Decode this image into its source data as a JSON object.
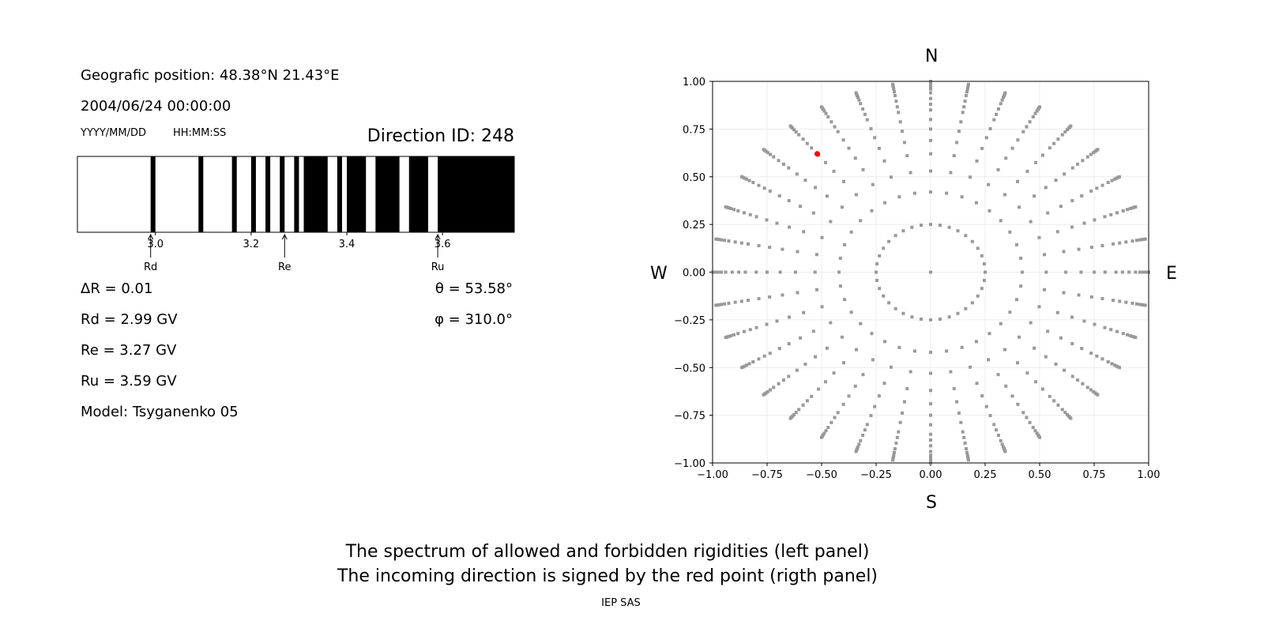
{
  "left_panel": {
    "position": "Geografic position: 48.38°N 21.43°E",
    "datetime": "2004/06/24 00:00:00",
    "date_format": "YYYY/MM/DD",
    "time_format": "HH:MM:SS",
    "direction_id": "Direction ID: 248",
    "delta_r": "ΔR = 0.01",
    "rd": "Rd = 2.99 GV",
    "re": "Re = 3.27 GV",
    "ru": "Ru = 3.59 GV",
    "model": "Model: Tsyganenko 05",
    "theta": "θ = 53.58°",
    "phi": "φ = 310.0°"
  },
  "right_panel": {
    "north": "N",
    "south": "S",
    "west": "W",
    "east": "E"
  },
  "caption": {
    "line1": "The spectrum of allowed and forbidden rigidities (left panel)",
    "line2": "The incoming direction is signed by the red point (rigth panel)",
    "credit": "IEP SAS"
  },
  "chart_data": [
    {
      "type": "spectrum",
      "xlim": [
        2.837,
        3.75
      ],
      "xticks": [
        3.0,
        3.2,
        3.4,
        3.6
      ],
      "xtick_labels": [
        "3.0",
        "3.2",
        "3.4",
        "3.6"
      ],
      "forbidden_color": "#000000",
      "allowed_color": "#ffffff",
      "forbidden_bands": [
        [
          2.99,
          3.0
        ],
        [
          3.09,
          3.1
        ],
        [
          3.16,
          3.17
        ],
        [
          3.2,
          3.21
        ],
        [
          3.23,
          3.24
        ],
        [
          3.26,
          3.27
        ],
        [
          3.29,
          3.3
        ],
        [
          3.31,
          3.36
        ],
        [
          3.38,
          3.39
        ],
        [
          3.4,
          3.44
        ],
        [
          3.46,
          3.51
        ],
        [
          3.53,
          3.57
        ],
        [
          3.59,
          3.75
        ]
      ],
      "markers": [
        {
          "label": "Rd",
          "value": 2.99
        },
        {
          "label": "Re",
          "value": 3.27
        },
        {
          "label": "Ru",
          "value": 3.59
        }
      ]
    },
    {
      "type": "scatter",
      "xlim": [
        -1,
        1
      ],
      "ylim": [
        -1,
        1
      ],
      "xticks": [
        "−1.00",
        "−0.75",
        "−0.50",
        "−0.25",
        "0.00",
        "0.25",
        "0.50",
        "0.75",
        "1.00"
      ],
      "yticks": [
        "−1.00",
        "−0.75",
        "−0.50",
        "−0.25",
        "0.00",
        "0.25",
        "0.50",
        "0.75",
        "1.00"
      ],
      "grid": true,
      "point_color": "#999999",
      "azimuth_step_deg": 10,
      "radii": [
        0.25,
        0.42,
        0.53,
        0.62,
        0.69,
        0.75,
        0.8,
        0.85,
        0.88,
        0.91,
        0.94,
        0.96,
        0.975,
        0.985,
        0.993,
        1.0
      ],
      "center_point": [
        0,
        0
      ],
      "highlight": {
        "x": -0.52,
        "y": 0.62,
        "color": "#ff0000"
      }
    }
  ]
}
